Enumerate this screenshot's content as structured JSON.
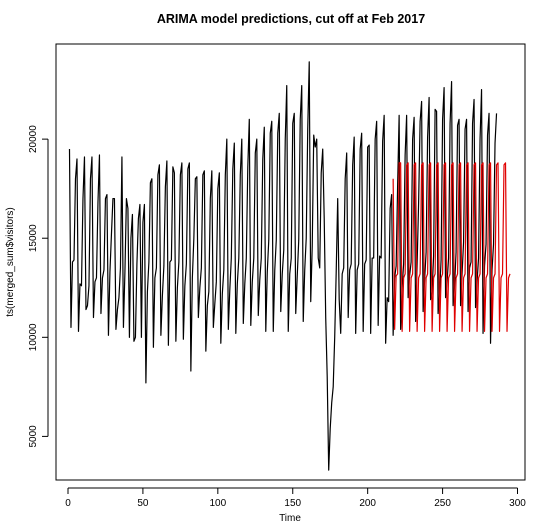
{
  "chart_data": {
    "type": "line",
    "title": "ARIMA model predictions, cut off at Feb 2017",
    "xlabel": "Time",
    "ylabel": "ts(merged_sum$visitors)",
    "xlim": [
      -8,
      305
    ],
    "ylim": [
      2800,
      24800
    ],
    "xticks": [
      0,
      50,
      100,
      150,
      200,
      250,
      300
    ],
    "yticks": [
      5000,
      10000,
      15000,
      20000
    ],
    "grid": false,
    "legend": "none",
    "series": [
      {
        "color": "#000000",
        "x_start": 1,
        "values": [
          19500,
          10500,
          13800,
          13900,
          18000,
          19000,
          10300,
          12700,
          12600,
          17000,
          19100,
          11400,
          11600,
          12600,
          18000,
          19100,
          11000,
          12800,
          13000,
          16800,
          19200,
          11200,
          13000,
          13400,
          17000,
          17200,
          10100,
          13300,
          15200,
          17000,
          17000,
          10400,
          11400,
          12000,
          13500,
          19100,
          10500,
          13300,
          17000,
          16500,
          10000,
          15000,
          16200,
          9800,
          10000,
          13700,
          16000,
          16700,
          10000,
          15800,
          16700,
          7700,
          12300,
          13800,
          17800,
          18000,
          9500,
          13000,
          13500,
          18200,
          18700,
          10100,
          12100,
          13600,
          17600,
          18900,
          9600,
          13800,
          13900,
          18600,
          18300,
          9800,
          12500,
          13800,
          18200,
          18800,
          9900,
          12600,
          13700,
          18500,
          18800,
          8300,
          13000,
          15000,
          18000,
          18100,
          11000,
          12500,
          13500,
          18200,
          18400,
          9300,
          11600,
          12300,
          17000,
          18400,
          10500,
          11700,
          12800,
          17500,
          18300,
          9700,
          12200,
          13400,
          18200,
          20000,
          10400,
          12400,
          14000,
          18500,
          19800,
          10200,
          12700,
          14000,
          18200,
          20000,
          10700,
          12700,
          14000,
          18600,
          21000,
          10600,
          12800,
          14000,
          19300,
          20000,
          11100,
          12900,
          14000,
          19000,
          20600,
          10300,
          13300,
          14900,
          20300,
          20900,
          10300,
          13400,
          14900,
          20300,
          21300,
          11300,
          13200,
          14400,
          20000,
          22700,
          10300,
          13200,
          14000,
          20800,
          21300,
          11200,
          13100,
          14900,
          21000,
          22700,
          10800,
          13400,
          15000,
          20500,
          23900,
          11800,
          14600,
          20200,
          19600,
          20000,
          14000,
          13500,
          18300,
          19500,
          16000,
          11000,
          8000,
          3300,
          5400,
          6700,
          7500,
          10000,
          13300,
          17000,
          11900,
          10200,
          13200,
          13500,
          18000,
          19300,
          11000,
          13400,
          13700,
          18700,
          20100,
          10200,
          13400,
          13700,
          19500,
          20300,
          10300,
          13700,
          13900,
          19600,
          19700,
          10200,
          14000,
          14000,
          20000,
          20900,
          10600,
          14100,
          14000,
          19900,
          21200,
          9700,
          12000,
          11800,
          16500,
          17200,
          10100,
          13000,
          13600,
          17700,
          21200,
          10400,
          12500,
          13700,
          19200,
          21200,
          12000,
          13100,
          13800,
          20000,
          21100,
          10800,
          13700,
          16800,
          20900,
          21900,
          11300,
          12900,
          14300,
          20100,
          22100,
          11900,
          12300,
          14100,
          21500,
          21400,
          11200,
          12200,
          13900,
          21000,
          22600,
          12000,
          12800,
          14000,
          20800,
          22900,
          11600,
          12600,
          14300,
          20700,
          21000,
          11600,
          13200,
          14800,
          20500,
          21000,
          11300,
          13500,
          13800,
          20800,
          22000,
          11500,
          12800,
          14000,
          20000,
          22500,
          10200,
          13600,
          14700,
          20200,
          21300,
          9700,
          13400,
          14700,
          19800,
          21300
        ]
      },
      {
        "color": "#e00000",
        "x_start": 217,
        "values": [
          18000,
          10400,
          13100,
          13200,
          18800,
          18800,
          10300,
          13000,
          13200,
          18700,
          18800,
          10300,
          13000,
          13200,
          18700,
          18800,
          10300,
          13000,
          13200,
          18700,
          18800,
          10300,
          13000,
          13200,
          18700,
          18800,
          10300,
          13000,
          13200,
          18700,
          18800,
          10300,
          13000,
          13200,
          18700,
          18800,
          10300,
          13000,
          13200,
          18700,
          18800,
          10300,
          13000,
          13200,
          18700,
          18800,
          10300,
          13000,
          13200,
          18700,
          18800,
          10300,
          13000,
          13200,
          18700,
          18800,
          10300,
          13000,
          13200,
          18700,
          18800,
          10300,
          13000,
          13200,
          18700,
          18800,
          10300,
          13000,
          13200,
          18700,
          18800,
          10300,
          13000,
          13200,
          18700,
          18800,
          10300,
          13000,
          13200
        ]
      }
    ]
  }
}
